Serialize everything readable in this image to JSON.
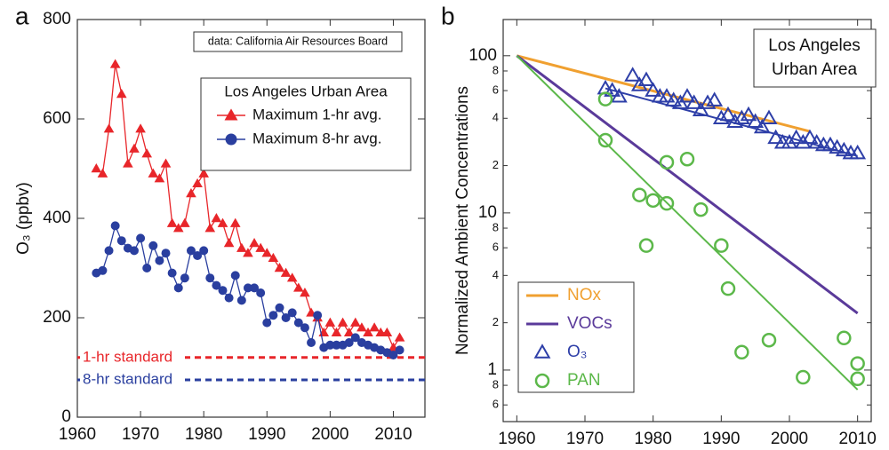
{
  "chart_data": [
    {
      "type": "line",
      "panel_label": "a",
      "ylabel": "O₃ (ppbv)",
      "annotation": "data: California Air Resources Board",
      "legend_title": "Los Angeles Urban Area",
      "x": [
        1963,
        1964,
        1965,
        1966,
        1967,
        1968,
        1969,
        1970,
        1971,
        1972,
        1973,
        1974,
        1975,
        1976,
        1977,
        1978,
        1979,
        1980,
        1981,
        1982,
        1983,
        1984,
        1985,
        1986,
        1987,
        1988,
        1989,
        1990,
        1991,
        1992,
        1993,
        1994,
        1995,
        1996,
        1997,
        1998,
        1999,
        2000,
        2001,
        2002,
        2003,
        2004,
        2005,
        2006,
        2007,
        2008,
        2009,
        2010,
        2011
      ],
      "series": [
        {
          "name": "Maximum 1-hr avg.",
          "color": "#e8262a",
          "marker": "triangle",
          "values": [
            500,
            490,
            580,
            710,
            650,
            510,
            540,
            580,
            530,
            490,
            480,
            510,
            390,
            380,
            390,
            450,
            470,
            490,
            380,
            400,
            390,
            350,
            390,
            340,
            330,
            350,
            340,
            330,
            320,
            300,
            290,
            280,
            260,
            250,
            210,
            200,
            170,
            190,
            170,
            190,
            170,
            190,
            180,
            170,
            180,
            170,
            170,
            140,
            160
          ]
        },
        {
          "name": "Maximum 8-hr avg.",
          "color": "#2a3f9f",
          "marker": "circle",
          "values": [
            290,
            295,
            335,
            385,
            355,
            340,
            335,
            360,
            300,
            345,
            315,
            330,
            290,
            260,
            280,
            335,
            325,
            335,
            280,
            265,
            255,
            240,
            285,
            235,
            260,
            260,
            250,
            190,
            205,
            220,
            200,
            210,
            190,
            180,
            150,
            205,
            140,
            145,
            145,
            145,
            150,
            160,
            150,
            145,
            140,
            135,
            130,
            125,
            135
          ]
        }
      ],
      "reference_lines": [
        {
          "label": "1-hr standard",
          "value": 120,
          "color": "#e8262a"
        },
        {
          "label": "8-hr standard",
          "value": 75,
          "color": "#2a3f9f"
        }
      ],
      "xlim": [
        1960,
        2015
      ],
      "xticks": [
        1960,
        1970,
        1980,
        1990,
        2000,
        2010
      ],
      "ylim": [
        0,
        800
      ],
      "yticks": [
        0,
        200,
        400,
        600,
        800
      ]
    },
    {
      "type": "scatter",
      "panel_label": "b",
      "ylabel": "Normalized Ambient Concentrations",
      "title": [
        "Los Angeles",
        "Urban Area"
      ],
      "log_y": true,
      "xlim": [
        1958,
        2012
      ],
      "xticks": [
        1960,
        1970,
        1980,
        1990,
        2000,
        2010
      ],
      "ylim": [
        0.47,
        170
      ],
      "yticks": [
        {
          "value": 0.6,
          "label": "6"
        },
        {
          "value": 0.8,
          "label": "8"
        },
        1,
        {
          "value": 2,
          "label": "2"
        },
        {
          "value": 4,
          "label": "4"
        },
        {
          "value": 6,
          "label": "6"
        },
        {
          "value": 8,
          "label": "8"
        },
        10,
        {
          "value": 20,
          "label": "2"
        },
        {
          "value": 40,
          "label": "4"
        },
        {
          "value": 60,
          "label": "6"
        },
        {
          "value": 80,
          "label": "8"
        },
        100
      ],
      "series": [
        {
          "name": "NOx",
          "color": "#f0a030",
          "style": "line",
          "x": [
            1960,
            2003
          ],
          "values": [
            100,
            33
          ]
        },
        {
          "name": "VOCs",
          "color": "#5a3a9a",
          "style": "line",
          "x": [
            1960,
            2010
          ],
          "values": [
            100,
            2.3
          ]
        },
        {
          "name": "O₃",
          "color": "#2e3fa8",
          "marker": "triangle",
          "x": [
            1973,
            1974,
            1975,
            1977,
            1978,
            1979,
            1980,
            1981,
            1982,
            1983,
            1984,
            1985,
            1986,
            1987,
            1988,
            1989,
            1990,
            1991,
            1992,
            1993,
            1994,
            1995,
            1996,
            1997,
            1998,
            1999,
            2000,
            2001,
            2002,
            2003,
            2004,
            2005,
            2006,
            2007,
            2008,
            2009,
            2010
          ],
          "values": [
            62,
            60,
            55,
            75,
            65,
            70,
            60,
            55,
            55,
            52,
            50,
            55,
            50,
            45,
            50,
            52,
            40,
            42,
            38,
            40,
            42,
            38,
            35,
            40,
            30,
            28,
            28,
            30,
            28,
            30,
            28,
            27,
            27,
            26,
            25,
            24,
            24
          ],
          "trend": {
            "x": [
              1973,
              2010
            ],
            "values": [
              62,
              23
            ]
          }
        },
        {
          "name": "PAN",
          "color": "#5cb84a",
          "marker": "circle",
          "x": [
            1973,
            1973,
            1978,
            1979,
            1980,
            1982,
            1982,
            1985,
            1987,
            1990,
            1991,
            1993,
            1997,
            2002,
            2008,
            2010,
            2010
          ],
          "values": [
            53,
            29,
            13,
            6.2,
            12,
            11.5,
            21,
            22,
            10.5,
            6.2,
            3.3,
            1.3,
            1.55,
            0.9,
            1.6,
            1.1,
            0.88
          ],
          "trend": {
            "x": [
              1960,
              2010
            ],
            "values": [
              100,
              0.75
            ]
          }
        }
      ]
    }
  ]
}
